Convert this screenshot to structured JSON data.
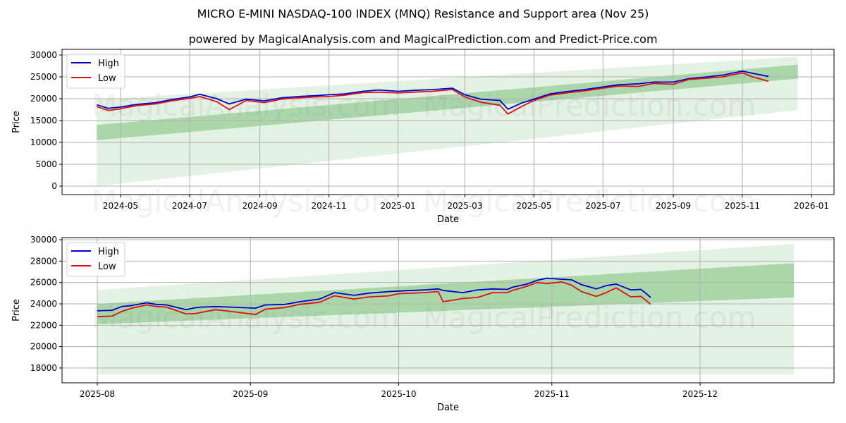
{
  "header": {
    "title": "MICRO E-MINI NASDAQ-100 INDEX (MNQ) Resistance and Support area (Nov 25)",
    "subtitle": "powered by MagicalAnalysis.com and MagicalPrediction.com and Predict-Price.com"
  },
  "watermarks": [
    "MagicalAnalysis.com",
    "MagicalPrediction.com"
  ],
  "colors": {
    "high": "#0000cc",
    "low": "#dd1111",
    "band_dark": "#8cc78c",
    "band_light": "#c8e6c8"
  },
  "chart_data": [
    {
      "type": "line",
      "title": "Full history with resistance/support bands",
      "xlabel": "Date",
      "ylabel": "Price",
      "ylim": [
        -1500,
        31000
      ],
      "grid": true,
      "legend_position": "upper left",
      "x_ticks": [
        "2024-05",
        "2024-07",
        "2024-09",
        "2024-11",
        "2025-01",
        "2025-03",
        "2025-05",
        "2025-07",
        "2025-09",
        "2025-11",
        "2026-01"
      ],
      "y_ticks": [
        0,
        5000,
        10000,
        15000,
        20000,
        25000,
        30000
      ],
      "legend": [
        "High",
        "Low"
      ],
      "x": [
        "2024-04-10",
        "2024-04-20",
        "2024-05-01",
        "2024-05-15",
        "2024-06-01",
        "2024-06-15",
        "2024-07-01",
        "2024-07-10",
        "2024-07-25",
        "2024-08-05",
        "2024-08-20",
        "2024-09-05",
        "2024-09-20",
        "2024-10-05",
        "2024-10-20",
        "2024-11-01",
        "2024-11-15",
        "2024-12-01",
        "2024-12-15",
        "2025-01-01",
        "2025-01-15",
        "2025-02-01",
        "2025-02-18",
        "2025-03-01",
        "2025-03-15",
        "2025-04-01",
        "2025-04-08",
        "2025-04-20",
        "2025-05-01",
        "2025-05-15",
        "2025-06-01",
        "2025-06-15",
        "2025-07-01",
        "2025-07-15",
        "2025-08-01",
        "2025-08-15",
        "2025-09-01",
        "2025-09-15",
        "2025-10-01",
        "2025-10-15",
        "2025-11-01",
        "2025-11-10",
        "2025-11-24"
      ],
      "series": [
        {
          "name": "High",
          "values": [
            18600,
            17800,
            18100,
            18700,
            19100,
            19800,
            20400,
            21000,
            20000,
            18800,
            19900,
            19500,
            20200,
            20500,
            20700,
            20900,
            21100,
            21700,
            22000,
            21700,
            21900,
            22100,
            22400,
            20900,
            19900,
            19600,
            17600,
            19000,
            19900,
            21100,
            21700,
            22100,
            22700,
            23200,
            23400,
            23800,
            23800,
            24600,
            25000,
            25400,
            26300,
            25800,
            25100
          ]
        },
        {
          "name": "Low",
          "values": [
            18200,
            17300,
            17700,
            18400,
            18800,
            19500,
            20100,
            20500,
            19300,
            17500,
            19600,
            19100,
            19900,
            20200,
            20400,
            20500,
            20800,
            21400,
            21500,
            21300,
            21500,
            21700,
            22100,
            20400,
            19200,
            18500,
            16500,
            18200,
            19600,
            20800,
            21400,
            21800,
            22400,
            22900,
            22800,
            23500,
            23300,
            24400,
            24700,
            25000,
            25900,
            25000,
            24000
          ]
        }
      ],
      "bands": [
        {
          "name": "outer light band",
          "start": "2024-04-10",
          "end": "2025-12-20",
          "upper": [
            19800,
            29600
          ],
          "lower": [
            0,
            17400
          ]
        },
        {
          "name": "inner dark band",
          "start": "2024-04-10",
          "end": "2025-12-20",
          "upper": [
            14000,
            27800
          ],
          "lower": [
            10500,
            24600
          ]
        }
      ]
    },
    {
      "type": "line",
      "title": "Zoomed recent period",
      "xlabel": "Date",
      "ylabel": "Price",
      "ylim": [
        16700,
        30200
      ],
      "grid": true,
      "legend_position": "upper left",
      "x_ticks": [
        "2025-08",
        "2025-09",
        "2025-10",
        "2025-11",
        "2025-12"
      ],
      "y_ticks": [
        18000,
        20000,
        22000,
        24000,
        26000,
        28000,
        30000
      ],
      "legend": [
        "High",
        "Low"
      ],
      "x": [
        "2025-08-01",
        "2025-08-04",
        "2025-08-06",
        "2025-08-08",
        "2025-08-11",
        "2025-08-13",
        "2025-08-15",
        "2025-08-19",
        "2025-08-21",
        "2025-08-22",
        "2025-08-25",
        "2025-08-28",
        "2025-09-02",
        "2025-09-04",
        "2025-09-08",
        "2025-09-11",
        "2025-09-15",
        "2025-09-18",
        "2025-09-22",
        "2025-09-25",
        "2025-09-29",
        "2025-10-01",
        "2025-10-06",
        "2025-10-09",
        "2025-10-10",
        "2025-10-14",
        "2025-10-17",
        "2025-10-20",
        "2025-10-23",
        "2025-10-24",
        "2025-10-27",
        "2025-10-29",
        "2025-10-31",
        "2025-11-03",
        "2025-11-05",
        "2025-11-07",
        "2025-11-10",
        "2025-11-12",
        "2025-11-14",
        "2025-11-17",
        "2025-11-19",
        "2025-11-20",
        "2025-11-21"
      ],
      "series": [
        {
          "name": "High",
          "values": [
            23350,
            23400,
            23750,
            23850,
            24100,
            23950,
            23900,
            23450,
            23650,
            23700,
            23750,
            23700,
            23600,
            23900,
            23950,
            24200,
            24450,
            25050,
            24800,
            25000,
            25150,
            25200,
            25300,
            25400,
            25250,
            25050,
            25300,
            25400,
            25350,
            25550,
            25850,
            26200,
            26400,
            26300,
            26250,
            25800,
            25400,
            25700,
            25850,
            25300,
            25350,
            25000,
            24600
          ]
        },
        {
          "name": "Low",
          "values": [
            22800,
            22850,
            23300,
            23600,
            23900,
            23750,
            23700,
            23050,
            23100,
            23200,
            23450,
            23300,
            23000,
            23500,
            23650,
            23950,
            24150,
            24750,
            24450,
            24650,
            24750,
            24950,
            25050,
            25150,
            24200,
            24500,
            24600,
            25050,
            25050,
            25250,
            25650,
            26000,
            25900,
            26050,
            25750,
            25150,
            24700,
            25050,
            25500,
            24650,
            24700,
            24350,
            23950
          ]
        }
      ],
      "bands": [
        {
          "name": "outer light band",
          "start": "2025-08-01",
          "end": "2025-12-20",
          "upper": [
            25300,
            29600
          ],
          "lower": [
            17400,
            17400
          ]
        },
        {
          "name": "inner dark band",
          "start": "2025-08-01",
          "end": "2025-12-20",
          "upper": [
            24000,
            27800
          ],
          "lower": [
            22100,
            24600
          ]
        }
      ]
    }
  ]
}
